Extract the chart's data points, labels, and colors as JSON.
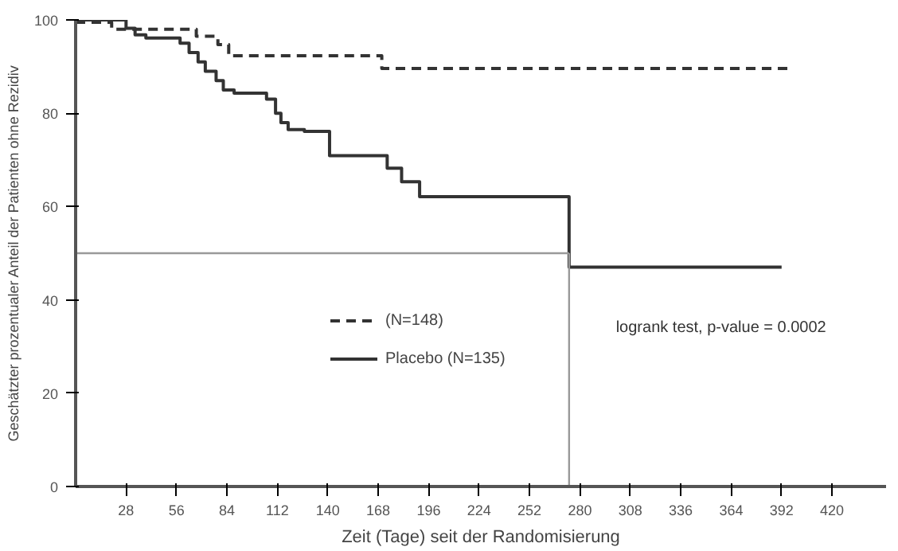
{
  "chart_data": {
    "type": "step",
    "xlabel": "Zeit (Tage) seit der Randomisierung",
    "ylabel": "Geschätzter prozentualer Anteil der Patienten ohne Rezidiv",
    "annotations": [
      "logrank test, p-value = 0.0002"
    ],
    "series": [
      {
        "name": "(N=148)",
        "color": "#333333",
        "line_style": "dashed",
        "x": [
          0,
          20,
          67,
          79,
          85,
          170,
          398
        ],
        "values": [
          99.5,
          98,
          96.5,
          94.7,
          92.3,
          89.6,
          89.6
        ]
      },
      {
        "name": "Placebo (N=135)",
        "color": "#333333",
        "line_style": "solid",
        "x": [
          0,
          28,
          33,
          39,
          58,
          63,
          68,
          72,
          78,
          82,
          88,
          106,
          111,
          114,
          118,
          127,
          141,
          173,
          181,
          191,
          274,
          392
        ],
        "values": [
          100,
          98.2,
          96.8,
          96.1,
          95,
          93,
          91,
          89,
          87,
          85,
          84.3,
          83,
          80,
          78,
          76.5,
          76.1,
          70.9,
          68.2,
          65.3,
          62.1,
          47,
          47
        ]
      },
      {
        "type": "line",
        "color": "#999999",
        "line_style": "solid",
        "x": [
          0,
          274
        ],
        "values": [
          50,
          50
        ]
      },
      {
        "type": "line",
        "color": "#999999",
        "line_style": "solid",
        "x": [
          274,
          274
        ],
        "values": [
          0,
          50
        ]
      }
    ],
    "xlim": [
      0,
      450
    ],
    "ylim": [
      0,
      100
    ],
    "xticks": [
      28,
      56,
      84,
      112,
      140,
      168,
      196,
      224,
      252,
      280,
      308,
      336,
      364,
      392,
      420
    ],
    "yticks": [
      0,
      20,
      40,
      60,
      80,
      100
    ],
    "grid": false,
    "legend": "center"
  }
}
